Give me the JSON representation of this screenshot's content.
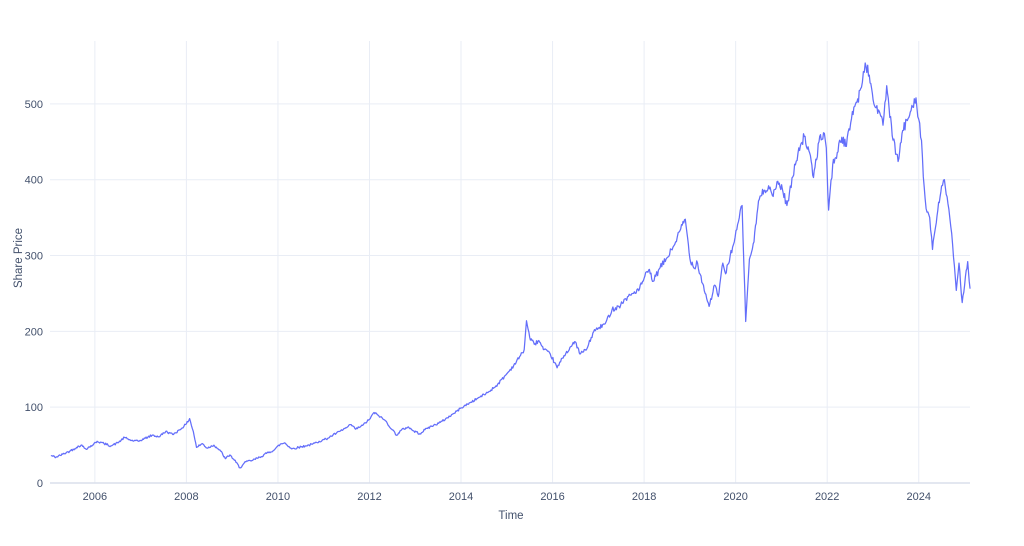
{
  "page": {
    "background": "#ffffff"
  },
  "chart_data": {
    "type": "line",
    "title": "",
    "xlabel": "Time",
    "ylabel": "Share Price",
    "xlim": [
      2005.02,
      2025.12
    ],
    "ylim": [
      0,
      583
    ],
    "grid": true,
    "legend_position": "none",
    "x_ticks": [
      {
        "value": 2006,
        "label": "2006"
      },
      {
        "value": 2008,
        "label": "2008"
      },
      {
        "value": 2010,
        "label": "2010"
      },
      {
        "value": 2012,
        "label": "2012"
      },
      {
        "value": 2014,
        "label": "2014"
      },
      {
        "value": 2016,
        "label": "2016"
      },
      {
        "value": 2018,
        "label": "2018"
      },
      {
        "value": 2020,
        "label": "2020"
      },
      {
        "value": 2022,
        "label": "2022"
      },
      {
        "value": 2024,
        "label": "2024"
      }
    ],
    "y_ticks": [
      {
        "value": 0,
        "label": "0"
      },
      {
        "value": 100,
        "label": "100"
      },
      {
        "value": 200,
        "label": "200"
      },
      {
        "value": 300,
        "label": "300"
      },
      {
        "value": 400,
        "label": "400"
      },
      {
        "value": 500,
        "label": "500"
      }
    ],
    "colors": {
      "line": "#636efa",
      "grid": "#e9edf5",
      "zero_line": "#dadfeb",
      "tick_text": "#42506b"
    },
    "tick_font_size": 11,
    "series": [
      {
        "name": "Share Price",
        "sampling": "anchor points estimated from dense daily price line",
        "points": [
          [
            2005.05,
            36
          ],
          [
            2005.15,
            34
          ],
          [
            2005.3,
            38
          ],
          [
            2005.45,
            42
          ],
          [
            2005.6,
            47
          ],
          [
            2005.7,
            50
          ],
          [
            2005.8,
            45
          ],
          [
            2005.95,
            50
          ],
          [
            2006.05,
            55
          ],
          [
            2006.2,
            52
          ],
          [
            2006.35,
            49
          ],
          [
            2006.5,
            53
          ],
          [
            2006.65,
            60
          ],
          [
            2006.8,
            56
          ],
          [
            2006.95,
            55
          ],
          [
            2007.1,
            59
          ],
          [
            2007.25,
            63
          ],
          [
            2007.4,
            61
          ],
          [
            2007.55,
            68
          ],
          [
            2007.7,
            64
          ],
          [
            2007.85,
            70
          ],
          [
            2008.0,
            78
          ],
          [
            2008.07,
            85
          ],
          [
            2008.15,
            68
          ],
          [
            2008.22,
            47
          ],
          [
            2008.35,
            52
          ],
          [
            2008.45,
            46
          ],
          [
            2008.6,
            50
          ],
          [
            2008.75,
            42
          ],
          [
            2008.85,
            32
          ],
          [
            2008.95,
            37
          ],
          [
            2009.05,
            30
          ],
          [
            2009.17,
            20
          ],
          [
            2009.3,
            28
          ],
          [
            2009.45,
            30
          ],
          [
            2009.6,
            34
          ],
          [
            2009.75,
            39
          ],
          [
            2009.9,
            43
          ],
          [
            2010.05,
            51
          ],
          [
            2010.15,
            53
          ],
          [
            2010.3,
            45
          ],
          [
            2010.45,
            47
          ],
          [
            2010.6,
            49
          ],
          [
            2010.75,
            51
          ],
          [
            2010.9,
            55
          ],
          [
            2011.05,
            58
          ],
          [
            2011.2,
            63
          ],
          [
            2011.35,
            68
          ],
          [
            2011.5,
            73
          ],
          [
            2011.6,
            77
          ],
          [
            2011.7,
            71
          ],
          [
            2011.85,
            76
          ],
          [
            2012.0,
            84
          ],
          [
            2012.1,
            93
          ],
          [
            2012.2,
            89
          ],
          [
            2012.35,
            82
          ],
          [
            2012.5,
            70
          ],
          [
            2012.6,
            63
          ],
          [
            2012.7,
            70
          ],
          [
            2012.85,
            74
          ],
          [
            2012.95,
            69
          ],
          [
            2013.1,
            65
          ],
          [
            2013.25,
            72
          ],
          [
            2013.4,
            76
          ],
          [
            2013.55,
            80
          ],
          [
            2013.7,
            86
          ],
          [
            2013.85,
            92
          ],
          [
            2014.0,
            99
          ],
          [
            2014.2,
            106
          ],
          [
            2014.4,
            113
          ],
          [
            2014.6,
            120
          ],
          [
            2014.8,
            130
          ],
          [
            2015.0,
            144
          ],
          [
            2015.15,
            155
          ],
          [
            2015.3,
            168
          ],
          [
            2015.38,
            176
          ],
          [
            2015.43,
            214
          ],
          [
            2015.5,
            192
          ],
          [
            2015.6,
            183
          ],
          [
            2015.7,
            188
          ],
          [
            2015.8,
            176
          ],
          [
            2015.95,
            170
          ],
          [
            2016.1,
            152
          ],
          [
            2016.25,
            168
          ],
          [
            2016.4,
            180
          ],
          [
            2016.5,
            186
          ],
          [
            2016.6,
            170
          ],
          [
            2016.75,
            177
          ],
          [
            2016.9,
            200
          ],
          [
            2017.0,
            204
          ],
          [
            2017.15,
            210
          ],
          [
            2017.3,
            229
          ],
          [
            2017.45,
            233
          ],
          [
            2017.6,
            243
          ],
          [
            2017.75,
            250
          ],
          [
            2017.9,
            256
          ],
          [
            2018.0,
            270
          ],
          [
            2018.1,
            281
          ],
          [
            2018.2,
            266
          ],
          [
            2018.35,
            284
          ],
          [
            2018.5,
            297
          ],
          [
            2018.65,
            313
          ],
          [
            2018.8,
            335
          ],
          [
            2018.9,
            348
          ],
          [
            2019.0,
            296
          ],
          [
            2019.1,
            283
          ],
          [
            2019.15,
            293
          ],
          [
            2019.28,
            263
          ],
          [
            2019.42,
            233
          ],
          [
            2019.54,
            261
          ],
          [
            2019.62,
            246
          ],
          [
            2019.72,
            290
          ],
          [
            2019.78,
            276
          ],
          [
            2019.88,
            300
          ],
          [
            2019.97,
            318
          ],
          [
            2020.08,
            350
          ],
          [
            2020.14,
            366
          ],
          [
            2020.22,
            213
          ],
          [
            2020.3,
            295
          ],
          [
            2020.4,
            318
          ],
          [
            2020.5,
            372
          ],
          [
            2020.62,
            386
          ],
          [
            2020.72,
            392
          ],
          [
            2020.82,
            378
          ],
          [
            2020.92,
            398
          ],
          [
            2021.02,
            388
          ],
          [
            2021.12,
            366
          ],
          [
            2021.25,
            404
          ],
          [
            2021.38,
            442
          ],
          [
            2021.5,
            457
          ],
          [
            2021.6,
            438
          ],
          [
            2021.7,
            403
          ],
          [
            2021.82,
            450
          ],
          [
            2021.92,
            462
          ],
          [
            2021.98,
            442
          ],
          [
            2022.03,
            360
          ],
          [
            2022.12,
            420
          ],
          [
            2022.22,
            436
          ],
          [
            2022.32,
            456
          ],
          [
            2022.42,
            444
          ],
          [
            2022.55,
            490
          ],
          [
            2022.65,
            502
          ],
          [
            2022.75,
            522
          ],
          [
            2022.83,
            554
          ],
          [
            2022.92,
            538
          ],
          [
            2023.02,
            500
          ],
          [
            2023.12,
            492
          ],
          [
            2023.22,
            472
          ],
          [
            2023.3,
            524
          ],
          [
            2023.42,
            458
          ],
          [
            2023.55,
            424
          ],
          [
            2023.65,
            465
          ],
          [
            2023.75,
            478
          ],
          [
            2023.85,
            498
          ],
          [
            2023.94,
            508
          ],
          [
            2024.0,
            480
          ],
          [
            2024.06,
            452
          ],
          [
            2024.1,
            404
          ],
          [
            2024.16,
            362
          ],
          [
            2024.24,
            350
          ],
          [
            2024.3,
            308
          ],
          [
            2024.4,
            352
          ],
          [
            2024.5,
            392
          ],
          [
            2024.56,
            400
          ],
          [
            2024.64,
            368
          ],
          [
            2024.7,
            338
          ],
          [
            2024.76,
            298
          ],
          [
            2024.82,
            254
          ],
          [
            2024.88,
            290
          ],
          [
            2024.95,
            238
          ],
          [
            2025.02,
            272
          ],
          [
            2025.07,
            292
          ],
          [
            2025.12,
            257
          ]
        ]
      }
    ]
  }
}
